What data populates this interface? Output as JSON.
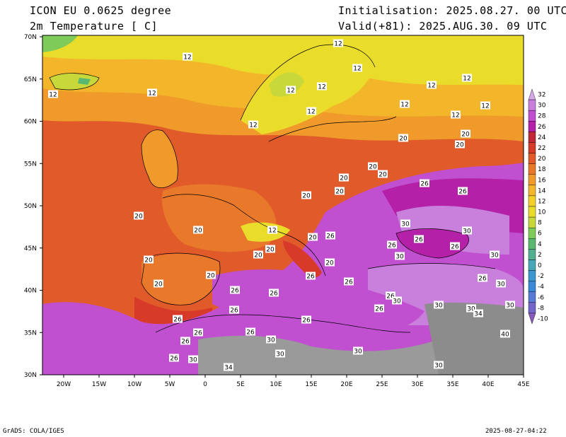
{
  "header": {
    "model": "ICON EU 0.0625 degree",
    "variable": "2m Temperature [ C]",
    "init": "Initialisation: 2025.08.27. 00 UTC",
    "valid": "Valid(+81): 2025.AUG.30. 09 UTC"
  },
  "axes": {
    "lat": [
      "70N",
      "65N",
      "60N",
      "55N",
      "50N",
      "45N",
      "40N",
      "35N",
      "30N"
    ],
    "lon": [
      "20W",
      "15W",
      "10W",
      "5W",
      "0",
      "5E",
      "10E",
      "15E",
      "20E",
      "25E",
      "30E",
      "35E",
      "40E",
      "45E"
    ]
  },
  "colorbar": {
    "labels": [
      "32",
      "30",
      "28",
      "26",
      "24",
      "22",
      "20",
      "18",
      "16",
      "14",
      "12",
      "10",
      "8",
      "6",
      "4",
      "2",
      "0",
      "-2",
      "-4",
      "-6",
      "-8",
      "-10"
    ],
    "colors": [
      "#d8a7e6",
      "#c880dc",
      "#c050d0",
      "#b420a8",
      "#c02838",
      "#d83a2a",
      "#e05a2a",
      "#e8782a",
      "#ef9a2a",
      "#f3b62a",
      "#f3cf2a",
      "#eadc2a",
      "#c8d83a",
      "#7ecb5a",
      "#58b870",
      "#50b090",
      "#48a8b8",
      "#3c98d0",
      "#3a88d8",
      "#5a7ad8",
      "#7466c8",
      "#8a5ab8"
    ]
  },
  "map_labels": [
    "12",
    "12",
    "12",
    "12",
    "12",
    "12",
    "12",
    "12",
    "12",
    "12",
    "12",
    "12",
    "12",
    "12",
    "12",
    "20",
    "20",
    "20",
    "20",
    "20",
    "20",
    "20",
    "20",
    "20",
    "20",
    "20",
    "20",
    "20",
    "20",
    "20",
    "20",
    "20",
    "26",
    "26",
    "26",
    "26",
    "26",
    "26",
    "26",
    "26",
    "26",
    "26",
    "26",
    "26",
    "26",
    "26",
    "26",
    "26",
    "26",
    "26",
    "26",
    "26",
    "30",
    "30",
    "30",
    "30",
    "30",
    "30",
    "30",
    "30",
    "30",
    "30",
    "30",
    "30",
    "30",
    "30",
    "34",
    "34",
    "40"
  ],
  "footer": {
    "left": "GrADS: COLA/IGES",
    "right": "2025-08-27-04:22"
  }
}
